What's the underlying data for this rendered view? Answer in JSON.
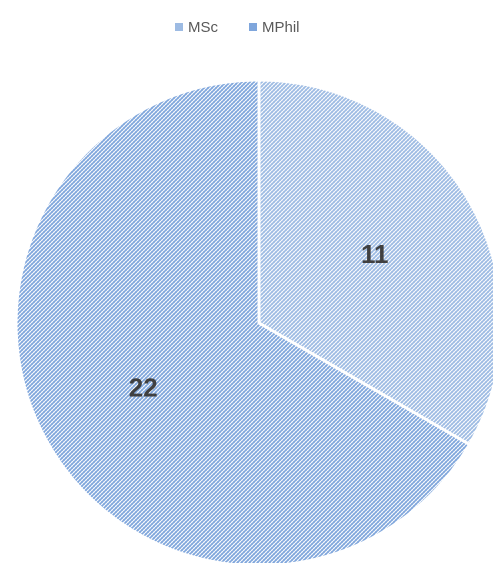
{
  "chart_data": {
    "type": "pie",
    "categories": [
      "MSc",
      "MPhil"
    ],
    "values": [
      11,
      22
    ],
    "colors": [
      "#9dbbe3",
      "#7fa6dc"
    ]
  }
}
